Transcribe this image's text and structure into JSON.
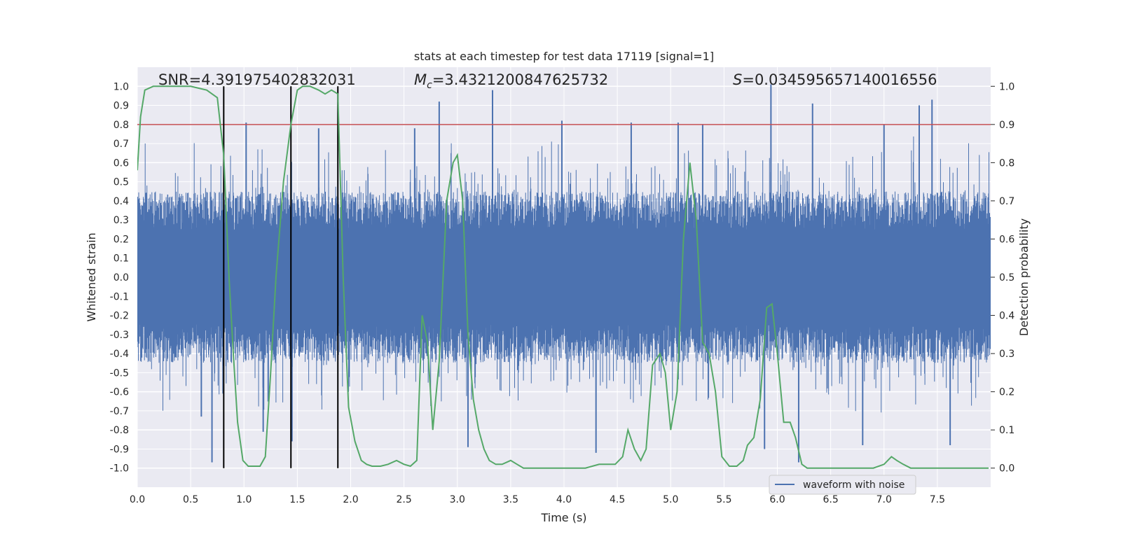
{
  "chart_data": {
    "type": "line",
    "title": "stats at each timestep for test data 17119 [signal=1]",
    "xlabel": "Time (s)",
    "ylabel_left": "Whitened strain",
    "ylabel_right": "Detection probability",
    "xlim": [
      0.0,
      8.0
    ],
    "ylim_left": [
      -1.1,
      1.1
    ],
    "ylim_right": [
      -0.05,
      1.05
    ],
    "x_ticks": [
      "0.0",
      "0.5",
      "1.0",
      "1.5",
      "2.0",
      "2.5",
      "3.0",
      "3.5",
      "4.0",
      "4.5",
      "5.0",
      "5.5",
      "6.0",
      "6.5",
      "7.0",
      "7.5"
    ],
    "y_left_ticks": [
      "1.0",
      "0.9",
      "0.8",
      "0.7",
      "0.6",
      "0.5",
      "0.4",
      "0.3",
      "0.2",
      "0.1",
      "0.0",
      "-0.1",
      "-0.2",
      "-0.3",
      "-0.4",
      "-0.5",
      "-0.6",
      "-0.7",
      "-0.8",
      "-0.9",
      "-1.0"
    ],
    "y_right_ticks": [
      "1.0",
      "0.9",
      "0.8",
      "0.7",
      "0.6",
      "0.5",
      "0.4",
      "0.3",
      "0.2",
      "0.1",
      "0.0"
    ],
    "grid": true,
    "legend": {
      "placement": "lower-right",
      "entries": [
        "waveform with noise"
      ]
    },
    "annotations": {
      "snr": "SNR=4.391975402832031",
      "mc_value": "=3.4321200847625732",
      "s_value": "=0.034595657140016556"
    },
    "threshold_line": {
      "value": 0.9,
      "axis": "right",
      "color": "#c44e52"
    },
    "vertical_lines": [
      0.81,
      1.44,
      1.88
    ],
    "colors": {
      "waveform": "#4c72b0",
      "probability": "#55a868",
      "threshold": "#c44e52",
      "vlines": "#000000",
      "axes_bg": "#eaeaf2"
    },
    "waveform": {
      "name": "waveform with noise",
      "typical_amplitude": 0.45,
      "spikes": [
        {
          "x": 0.7,
          "y": -0.97
        },
        {
          "x": 0.6,
          "y": -0.73
        },
        {
          "x": 1.02,
          "y": 0.81
        },
        {
          "x": 1.18,
          "y": -0.81
        },
        {
          "x": 1.45,
          "y": -0.86
        },
        {
          "x": 1.7,
          "y": 0.78
        },
        {
          "x": 2.6,
          "y": 0.78
        },
        {
          "x": 2.83,
          "y": 0.92
        },
        {
          "x": 3.1,
          "y": -0.89
        },
        {
          "x": 3.33,
          "y": 0.98
        },
        {
          "x": 4.3,
          "y": -0.92
        },
        {
          "x": 5.88,
          "y": -0.9
        },
        {
          "x": 5.94,
          "y": 1.01
        },
        {
          "x": 6.2,
          "y": -0.97
        },
        {
          "x": 6.33,
          "y": 0.91
        },
        {
          "x": 6.8,
          "y": -0.88
        },
        {
          "x": 7.33,
          "y": 0.9
        },
        {
          "x": 7.45,
          "y": 0.93
        },
        {
          "x": 7.62,
          "y": -0.88
        },
        {
          "x": 3.98,
          "y": 0.82
        },
        {
          "x": 4.63,
          "y": 0.81
        },
        {
          "x": 5.07,
          "y": 0.81
        },
        {
          "x": 5.3,
          "y": 0.8
        },
        {
          "x": 7.0,
          "y": 0.8
        }
      ]
    },
    "probability": {
      "x": [
        0.0,
        0.03,
        0.07,
        0.15,
        0.3,
        0.5,
        0.65,
        0.75,
        0.81,
        0.86,
        0.9,
        0.94,
        0.99,
        1.04,
        1.09,
        1.15,
        1.2,
        1.25,
        1.3,
        1.37,
        1.44,
        1.5,
        1.55,
        1.62,
        1.7,
        1.76,
        1.82,
        1.88,
        1.93,
        1.98,
        2.04,
        2.1,
        2.15,
        2.2,
        2.28,
        2.35,
        2.43,
        2.5,
        2.56,
        2.62,
        2.67,
        2.72,
        2.77,
        2.83,
        2.9,
        2.96,
        3.0,
        3.05,
        3.1,
        3.15,
        3.2,
        3.25,
        3.3,
        3.36,
        3.42,
        3.5,
        3.56,
        3.62,
        3.7,
        3.85,
        4.0,
        4.2,
        4.33,
        4.4,
        4.48,
        4.55,
        4.6,
        4.66,
        4.72,
        4.77,
        4.83,
        4.9,
        4.95,
        5.0,
        5.06,
        5.12,
        5.18,
        5.24,
        5.3,
        5.36,
        5.42,
        5.48,
        5.55,
        5.62,
        5.68,
        5.72,
        5.78,
        5.84,
        5.9,
        5.95,
        6.0,
        6.06,
        6.12,
        6.17,
        6.23,
        6.28,
        6.34,
        6.4,
        6.5,
        6.6,
        6.75,
        6.9,
        7.0,
        7.07,
        7.12,
        7.18,
        7.25,
        7.35,
        7.45,
        7.55,
        7.7,
        7.85,
        7.98
      ],
      "values": [
        0.78,
        0.92,
        0.99,
        1.0,
        1.0,
        1.0,
        0.99,
        0.97,
        0.82,
        0.5,
        0.3,
        0.12,
        0.02,
        0.005,
        0.005,
        0.005,
        0.03,
        0.25,
        0.5,
        0.75,
        0.9,
        0.99,
        1.0,
        1.0,
        0.99,
        0.98,
        0.99,
        0.98,
        0.5,
        0.16,
        0.07,
        0.02,
        0.01,
        0.005,
        0.005,
        0.01,
        0.02,
        0.01,
        0.005,
        0.02,
        0.4,
        0.33,
        0.1,
        0.28,
        0.7,
        0.8,
        0.82,
        0.7,
        0.35,
        0.18,
        0.1,
        0.05,
        0.02,
        0.01,
        0.01,
        0.02,
        0.01,
        0.0,
        0.0,
        0.0,
        0.0,
        0.0,
        0.01,
        0.01,
        0.01,
        0.03,
        0.1,
        0.05,
        0.02,
        0.05,
        0.27,
        0.3,
        0.25,
        0.1,
        0.2,
        0.6,
        0.8,
        0.65,
        0.33,
        0.3,
        0.2,
        0.03,
        0.005,
        0.005,
        0.02,
        0.06,
        0.08,
        0.18,
        0.42,
        0.43,
        0.3,
        0.12,
        0.12,
        0.08,
        0.01,
        0.0,
        0.0,
        0.0,
        0.0,
        0.0,
        0.0,
        0.0,
        0.01,
        0.03,
        0.02,
        0.01,
        0.0,
        0.0,
        0.0,
        0.0,
        0.0,
        0.0,
        0.0
      ]
    }
  }
}
